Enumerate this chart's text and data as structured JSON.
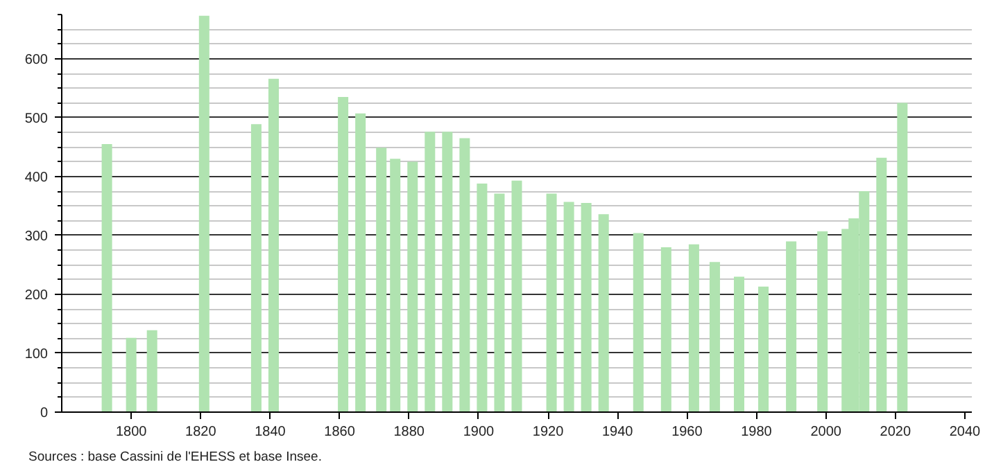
{
  "chart_data": {
    "type": "bar",
    "color": "#b0e3b0",
    "x": [
      1793,
      1800,
      1806,
      1821,
      1836,
      1841,
      1861,
      1866,
      1872,
      1876,
      1881,
      1886,
      1891,
      1896,
      1901,
      1906,
      1911,
      1921,
      1926,
      1931,
      1936,
      1946,
      1954,
      1962,
      1968,
      1975,
      1982,
      1990,
      1999,
      2006,
      2008,
      2011,
      2016,
      2021,
      2022
    ],
    "values": [
      455,
      126,
      139,
      673,
      489,
      566,
      535,
      507,
      449,
      430,
      425,
      476,
      476,
      465,
      388,
      371,
      393,
      371,
      357,
      355,
      336,
      304,
      280,
      285,
      255,
      230,
      213,
      290,
      307,
      311,
      329,
      375,
      432,
      null,
      525
    ],
    "xlim": [
      1780,
      2042
    ],
    "xticks": [
      1800,
      1820,
      1840,
      1860,
      1880,
      1900,
      1920,
      1940,
      1960,
      1980,
      2000,
      2020,
      2040
    ],
    "ylim": [
      0,
      675
    ],
    "yticks": [
      0,
      {
        "value": 25,
        "label": null
      },
      {
        "value": 50,
        "label": null
      },
      {
        "value": 75,
        "label": null
      },
      100,
      {
        "value": 125,
        "label": null
      },
      {
        "value": 150,
        "label": null
      },
      {
        "value": 175,
        "label": null
      },
      200,
      {
        "value": 225,
        "label": null
      },
      {
        "value": 250,
        "label": null
      },
      {
        "value": 275,
        "label": null
      },
      300,
      {
        "value": 325,
        "label": null
      },
      {
        "value": 350,
        "label": null
      },
      {
        "value": 375,
        "label": null
      },
      400,
      {
        "value": 425,
        "label": null
      },
      {
        "value": 450,
        "label": null
      },
      {
        "value": 475,
        "label": null
      },
      500,
      {
        "value": 525,
        "label": null
      },
      {
        "value": 550,
        "label": null
      },
      {
        "value": 575,
        "label": null
      },
      600,
      {
        "value": 625,
        "label": null
      },
      {
        "value": 650,
        "label": null
      },
      {
        "value": 675,
        "label": null
      }
    ],
    "grid": "y",
    "annotations": [
      "Sources : base Cassini de l'EHESS et base Insee."
    ]
  }
}
